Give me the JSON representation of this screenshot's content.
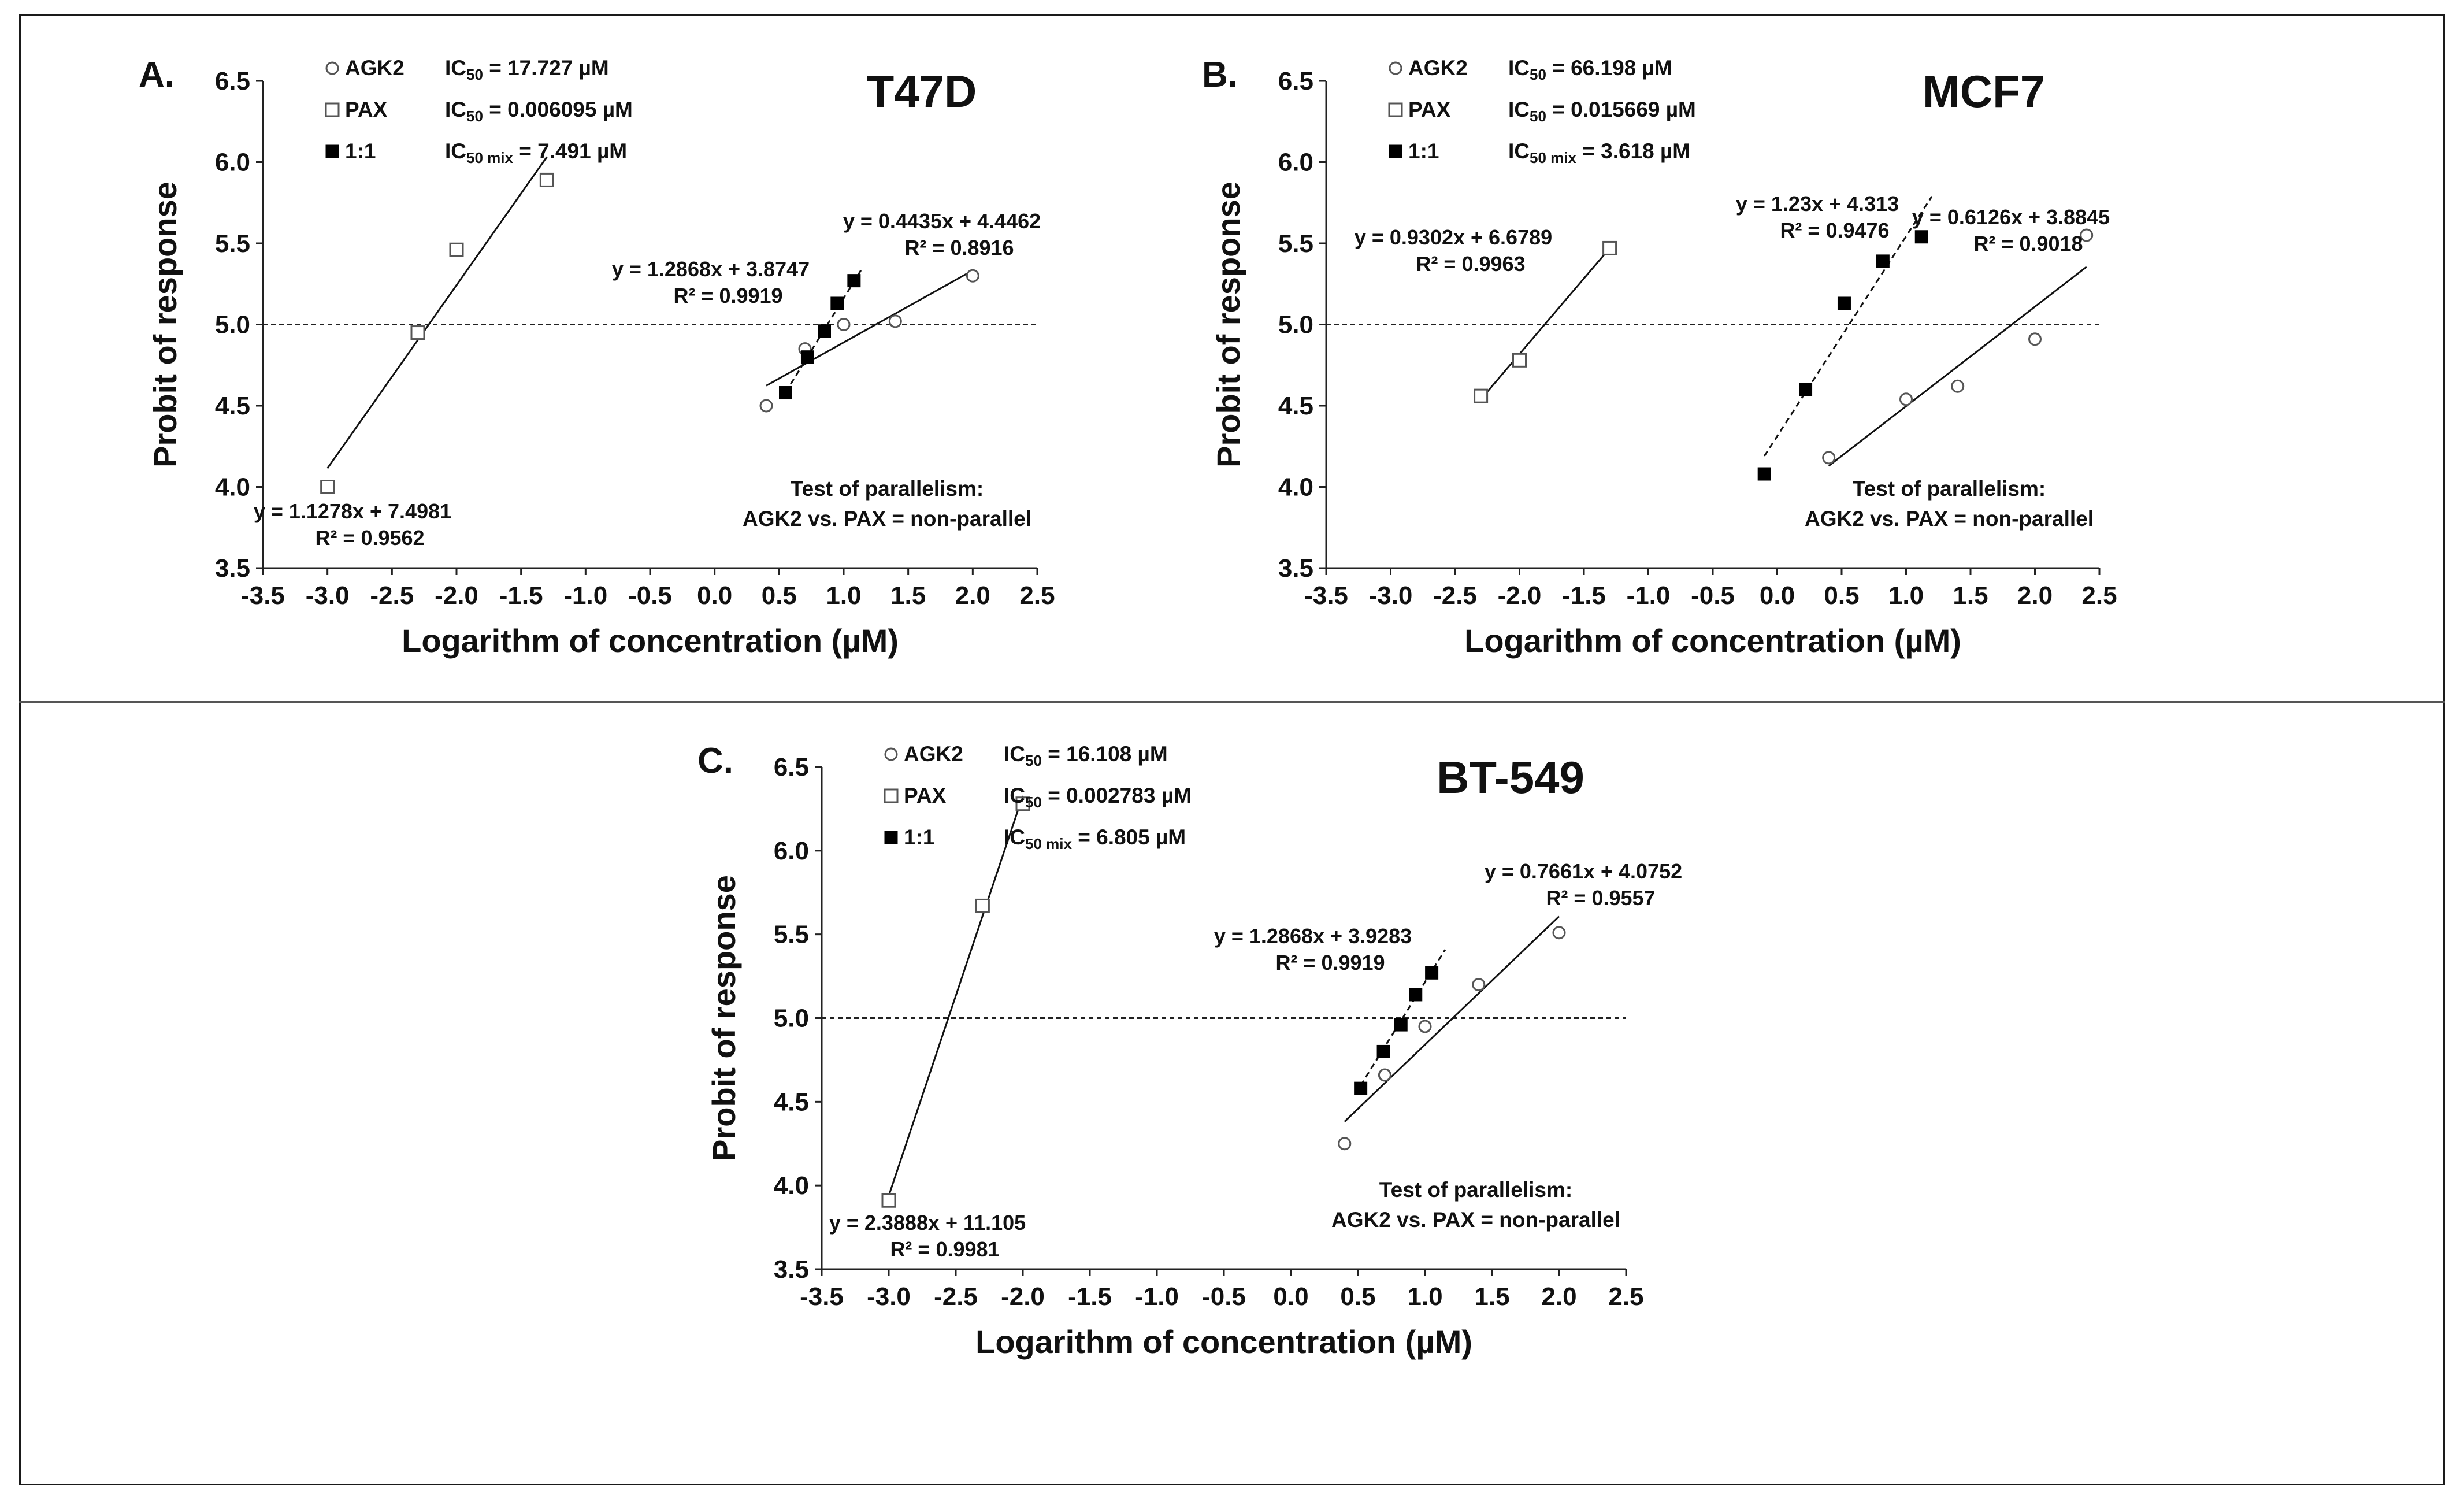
{
  "figure": {
    "panels": [
      {
        "id": "A",
        "letter": "A.",
        "title": "T47D",
        "xlabel": "Logarithm of concentration (µM)",
        "ylabel": "Probit of response",
        "legend": [
          {
            "series": "AGK2",
            "label": "AGK2",
            "ic_prefix": "IC",
            "ic_sub": "50",
            "ic_value": " = 17.727 µM"
          },
          {
            "series": "PAX",
            "label": "PAX",
            "ic_prefix": "IC",
            "ic_sub": "50",
            "ic_value": " = 0.006095 µM"
          },
          {
            "series": "1:1",
            "label": "1:1",
            "ic_prefix": "IC",
            "ic_sub": "50 mix",
            "ic_value": " = 7.491 µM"
          }
        ],
        "parallelism": [
          "Test of parallelism:",
          "AGK2 vs. PAX = non-parallel"
        ]
      },
      {
        "id": "B",
        "letter": "B.",
        "title": "MCF7",
        "xlabel": "Logarithm of concentration (µM)",
        "ylabel": "Probit of response",
        "legend": [
          {
            "series": "AGK2",
            "label": "AGK2",
            "ic_prefix": "IC",
            "ic_sub": "50",
            "ic_value": " = 66.198 µM"
          },
          {
            "series": "PAX",
            "label": "PAX",
            "ic_prefix": "IC",
            "ic_sub": "50",
            "ic_value": " = 0.015669 µM"
          },
          {
            "series": "1:1",
            "label": "1:1",
            "ic_prefix": "IC",
            "ic_sub": "50 mix",
            "ic_value": " = 3.618 µM"
          }
        ],
        "parallelism": [
          "Test of parallelism:",
          "AGK2 vs. PAX = non-parallel"
        ]
      },
      {
        "id": "C",
        "letter": "C.",
        "title": "BT-549",
        "xlabel": "Logarithm of concentration (µM)",
        "ylabel": "Probit of response",
        "legend": [
          {
            "series": "AGK2",
            "label": "AGK2",
            "ic_prefix": "IC",
            "ic_sub": "50",
            "ic_value": " = 16.108 µM"
          },
          {
            "series": "PAX",
            "label": "PAX",
            "ic_prefix": "IC",
            "ic_sub": "50",
            "ic_value": " = 0.002783 µM"
          },
          {
            "series": "1:1",
            "label": "1:1",
            "ic_prefix": "IC",
            "ic_sub": "50 mix",
            "ic_value": " = 6.805 µM"
          }
        ],
        "parallelism": [
          "Test of parallelism:",
          "AGK2 vs. PAX = non-parallel"
        ]
      }
    ]
  },
  "chart_data": [
    {
      "panel": "A",
      "type": "scatter",
      "title": "T47D",
      "xlabel": "Logarithm of concentration (µM)",
      "ylabel": "Probit of response",
      "xlim": [
        -3.5,
        2.5
      ],
      "ylim": [
        3.5,
        6.5
      ],
      "xticks": [
        "-3.5",
        "-3.0",
        "-2.5",
        "-2.0",
        "-1.5",
        "-1.0",
        "-0.5",
        "0.0",
        "0.5",
        "1.0",
        "1.5",
        "2.0",
        "2.5"
      ],
      "yticks": [
        "3.5",
        "4.0",
        "4.5",
        "5.0",
        "5.5",
        "6.0",
        "6.5"
      ],
      "reference_line_y": 5.0,
      "series": [
        {
          "name": "AGK2",
          "marker": "open-circle",
          "x": [
            0.4,
            0.7,
            1.0,
            1.4,
            2.0
          ],
          "y": [
            4.5,
            4.85,
            5.0,
            5.02,
            5.3
          ],
          "fit": {
            "slope": 0.4435,
            "intercept": 4.4462,
            "x_range": [
              0.4,
              2.0
            ],
            "style": "solid"
          },
          "equation": "y = 0.4435x + 4.4462",
          "r2": "R² = 0.8916"
        },
        {
          "name": "PAX",
          "marker": "open-square",
          "x": [
            -3.0,
            -2.3,
            -2.0,
            -1.3
          ],
          "y": [
            4.0,
            4.95,
            5.46,
            5.89
          ],
          "fit": {
            "slope": 1.1278,
            "intercept": 7.4981,
            "x_range": [
              -3.0,
              -1.3
            ],
            "style": "solid"
          },
          "equation": "y = 1.1278x + 7.4981",
          "r2": "R² = 0.9562"
        },
        {
          "name": "1:1",
          "marker": "filled-square",
          "x": [
            0.55,
            0.72,
            0.85,
            0.95,
            1.08
          ],
          "y": [
            4.58,
            4.8,
            4.96,
            5.13,
            5.27
          ],
          "fit": {
            "slope": 1.2868,
            "intercept": 3.8747,
            "x_range": [
              0.55,
              1.15
            ],
            "style": "dashed"
          },
          "equation": "y = 1.2868x + 3.8747",
          "r2": "R² = 0.9919"
        }
      ]
    },
    {
      "panel": "B",
      "type": "scatter",
      "title": "MCF7",
      "xlabel": "Logarithm of concentration (µM)",
      "ylabel": "Probit of response",
      "xlim": [
        -3.5,
        2.5
      ],
      "ylim": [
        3.5,
        6.5
      ],
      "xticks": [
        "-3.5",
        "-3.0",
        "-2.5",
        "-2.0",
        "-1.5",
        "-1.0",
        "-0.5",
        "0.0",
        "0.5",
        "1.0",
        "1.5",
        "2.0",
        "2.5"
      ],
      "yticks": [
        "3.5",
        "4.0",
        "4.5",
        "5.0",
        "5.5",
        "6.0",
        "6.5"
      ],
      "reference_line_y": 5.0,
      "series": [
        {
          "name": "AGK2",
          "marker": "open-circle",
          "x": [
            0.4,
            1.0,
            1.4,
            2.0,
            2.4
          ],
          "y": [
            4.18,
            4.54,
            4.62,
            4.91,
            5.55
          ],
          "fit": {
            "slope": 0.6126,
            "intercept": 3.8845,
            "x_range": [
              0.4,
              2.4
            ],
            "style": "solid"
          },
          "equation": "y = 0.6126x + 3.8845",
          "r2": "R² = 0.9018"
        },
        {
          "name": "PAX",
          "marker": "open-square",
          "x": [
            -2.3,
            -2.0,
            -1.3
          ],
          "y": [
            4.56,
            4.78,
            5.47
          ],
          "fit": {
            "slope": 0.9302,
            "intercept": 6.6789,
            "x_range": [
              -2.3,
              -1.3
            ],
            "style": "solid"
          },
          "equation": "y = 0.9302x + 6.6789",
          "r2": "R² = 0.9963"
        },
        {
          "name": "1:1",
          "marker": "filled-square",
          "x": [
            -0.1,
            0.22,
            0.52,
            0.82,
            1.12
          ],
          "y": [
            4.08,
            4.6,
            5.13,
            5.39,
            5.54
          ],
          "fit": {
            "slope": 1.23,
            "intercept": 4.313,
            "x_range": [
              -0.1,
              1.2
            ],
            "style": "dashed"
          },
          "equation": "y = 1.23x + 4.313",
          "r2": "R² = 0.9476"
        }
      ]
    },
    {
      "panel": "C",
      "type": "scatter",
      "title": "BT-549",
      "xlabel": "Logarithm of concentration (µM)",
      "ylabel": "Probit of response",
      "xlim": [
        -3.5,
        2.5
      ],
      "ylim": [
        3.5,
        6.5
      ],
      "xticks": [
        "-3.5",
        "-3.0",
        "-2.5",
        "-2.0",
        "-1.5",
        "-1.0",
        "-0.5",
        "0.0",
        "0.5",
        "1.0",
        "1.5",
        "2.0",
        "2.5"
      ],
      "yticks": [
        "3.5",
        "4.0",
        "4.5",
        "5.0",
        "5.5",
        "6.0",
        "6.5"
      ],
      "reference_line_y": 5.0,
      "series": [
        {
          "name": "AGK2",
          "marker": "open-circle",
          "x": [
            0.4,
            0.7,
            1.0,
            1.4,
            2.0
          ],
          "y": [
            4.25,
            4.66,
            4.95,
            5.2,
            5.51
          ],
          "fit": {
            "slope": 0.7661,
            "intercept": 4.0752,
            "x_range": [
              0.4,
              2.0
            ],
            "style": "solid"
          },
          "equation": "y = 0.7661x + 4.0752",
          "r2": "R² = 0.9557"
        },
        {
          "name": "PAX",
          "marker": "open-square",
          "x": [
            -3.0,
            -2.3,
            -2.0
          ],
          "y": [
            3.91,
            5.67,
            6.28
          ],
          "fit": {
            "slope": 2.3888,
            "intercept": 11.105,
            "x_range": [
              -3.0,
              -2.0
            ],
            "style": "solid"
          },
          "equation": "y = 2.3888x + 11.105",
          "r2": "R² = 0.9981"
        },
        {
          "name": "1:1",
          "marker": "filled-square",
          "x": [
            0.52,
            0.69,
            0.82,
            0.93,
            1.05
          ],
          "y": [
            4.58,
            4.8,
            4.96,
            5.14,
            5.27
          ],
          "fit": {
            "slope": 1.2868,
            "intercept": 3.9283,
            "x_range": [
              0.52,
              1.15
            ],
            "style": "dashed"
          },
          "equation": "y = 1.2868x + 3.9283",
          "r2": "R² = 0.9919"
        }
      ]
    }
  ]
}
